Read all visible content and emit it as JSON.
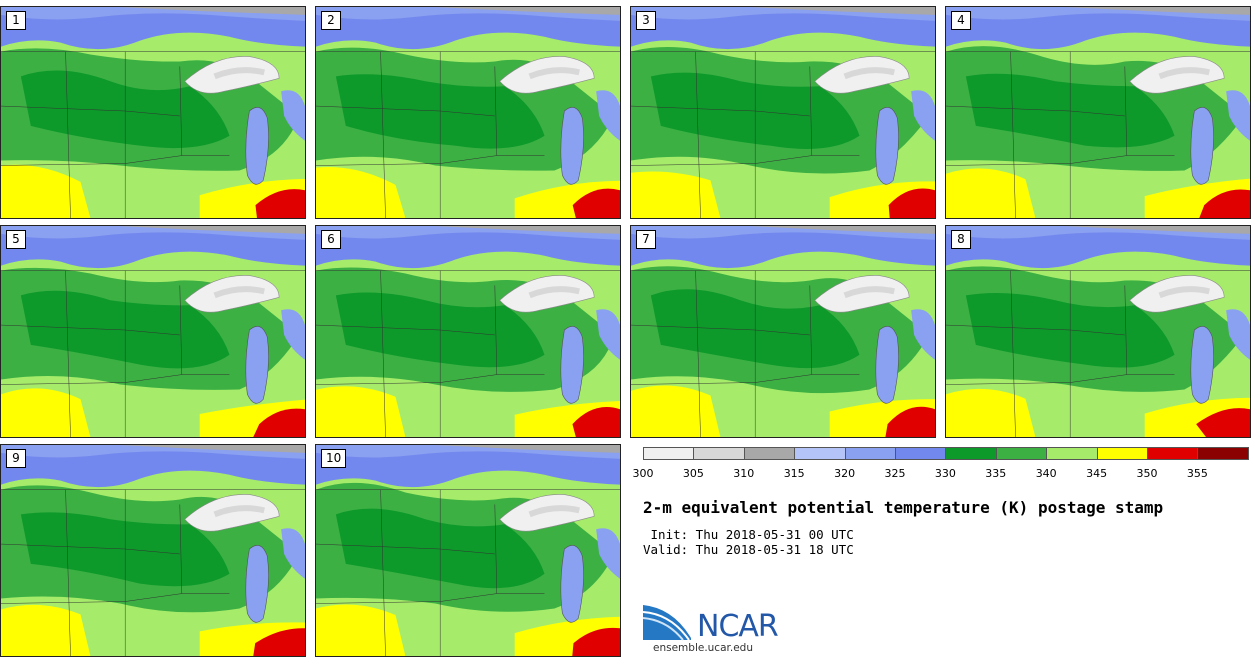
{
  "panels": [
    {
      "label": "1"
    },
    {
      "label": "2"
    },
    {
      "label": "3"
    },
    {
      "label": "4"
    },
    {
      "label": "5"
    },
    {
      "label": "6"
    },
    {
      "label": "7"
    },
    {
      "label": "8"
    },
    {
      "label": "9"
    },
    {
      "label": "10"
    }
  ],
  "colorbar": {
    "ticks": [
      "300",
      "305",
      "310",
      "315",
      "320",
      "325",
      "330",
      "335",
      "340",
      "345",
      "350",
      "355"
    ],
    "colors": [
      "#f0f0f0",
      "#d8d8d8",
      "#a8a8a8",
      "#b4c4f8",
      "#8aa0f0",
      "#7388ee",
      "#0d9a2a",
      "#3cb043",
      "#a6ec6a",
      "#ffff00",
      "#e00000",
      "#8b0000"
    ]
  },
  "title": "2-m equivalent potential temperature (K) postage stamp",
  "init_text": " Init: Thu 2018-05-31 00 UTC",
  "valid_text": "Valid: Thu 2018-05-31 18 UTC",
  "logo": {
    "name": "NCAR",
    "url": "ensemble.ucar.edu"
  }
}
